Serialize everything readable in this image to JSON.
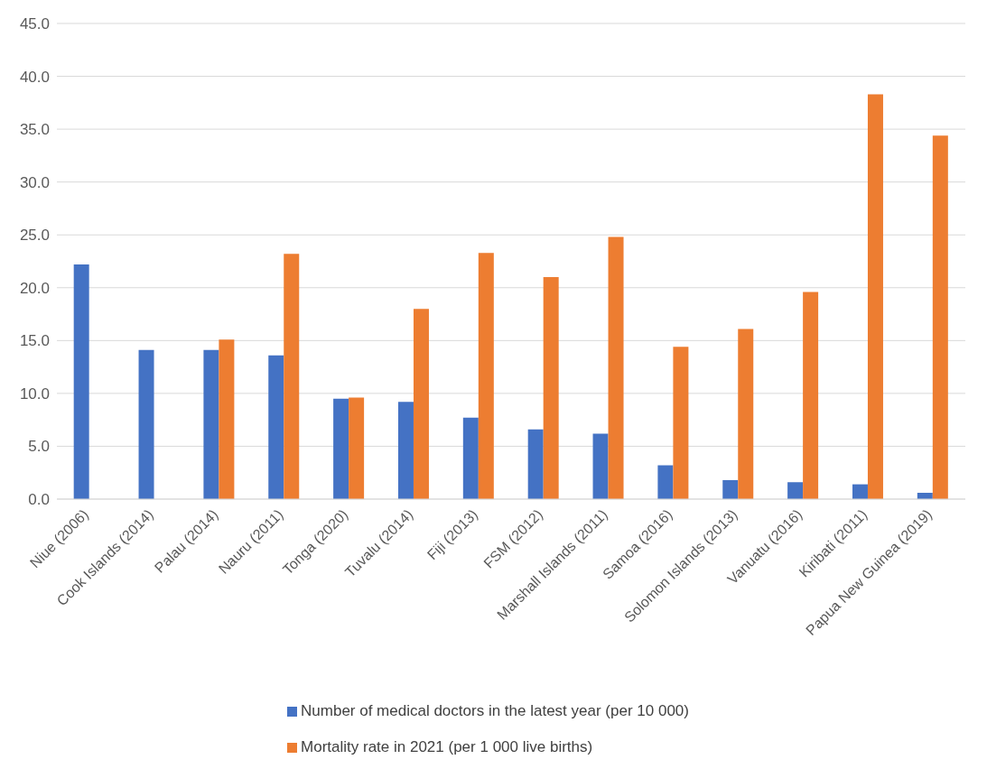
{
  "chart_data": {
    "type": "bar",
    "categories": [
      "Niue (2006)",
      "Cook Islands (2014)",
      "Palau (2014)",
      "Nauru (2011)",
      "Tonga (2020)",
      "Tuvalu (2014)",
      "Fiji (2013)",
      "FSM (2012)",
      "Marshall Islands (2011)",
      "Samoa (2016)",
      "Solomon Islands (2013)",
      "Vanuatu (2016)",
      "Kiribati (2011)",
      "Papua New Guinea (2019)"
    ],
    "series": [
      {
        "name": "Number of medical doctors in the latest year (per 10 000)",
        "color": "#4472c4",
        "values": [
          22.2,
          14.1,
          14.1,
          13.6,
          9.5,
          9.2,
          7.7,
          6.6,
          6.2,
          3.2,
          1.8,
          1.6,
          1.4,
          0.6
        ]
      },
      {
        "name": "Mortality rate in 2021 (per 1 000 live births)",
        "color": "#ed7d31",
        "values": [
          null,
          null,
          15.1,
          23.2,
          9.6,
          18.0,
          23.3,
          21.0,
          24.8,
          14.4,
          16.1,
          19.6,
          38.3,
          34.4
        ]
      }
    ],
    "ylim": [
      0,
      45
    ],
    "yticks": [
      {
        "value": 0,
        "label": "0.0"
      },
      {
        "value": 5,
        "label": "5.0"
      },
      {
        "value": 10,
        "label": "10.0"
      },
      {
        "value": 15,
        "label": "15.0"
      },
      {
        "value": 20,
        "label": "20.0"
      },
      {
        "value": 25,
        "label": "25.0"
      },
      {
        "value": 30,
        "label": "30.0"
      },
      {
        "value": 35,
        "label": "35.0"
      },
      {
        "value": 40,
        "label": "40.0"
      },
      {
        "value": 45,
        "label": "45.0"
      }
    ],
    "grid": "y",
    "legend": "bottom"
  }
}
